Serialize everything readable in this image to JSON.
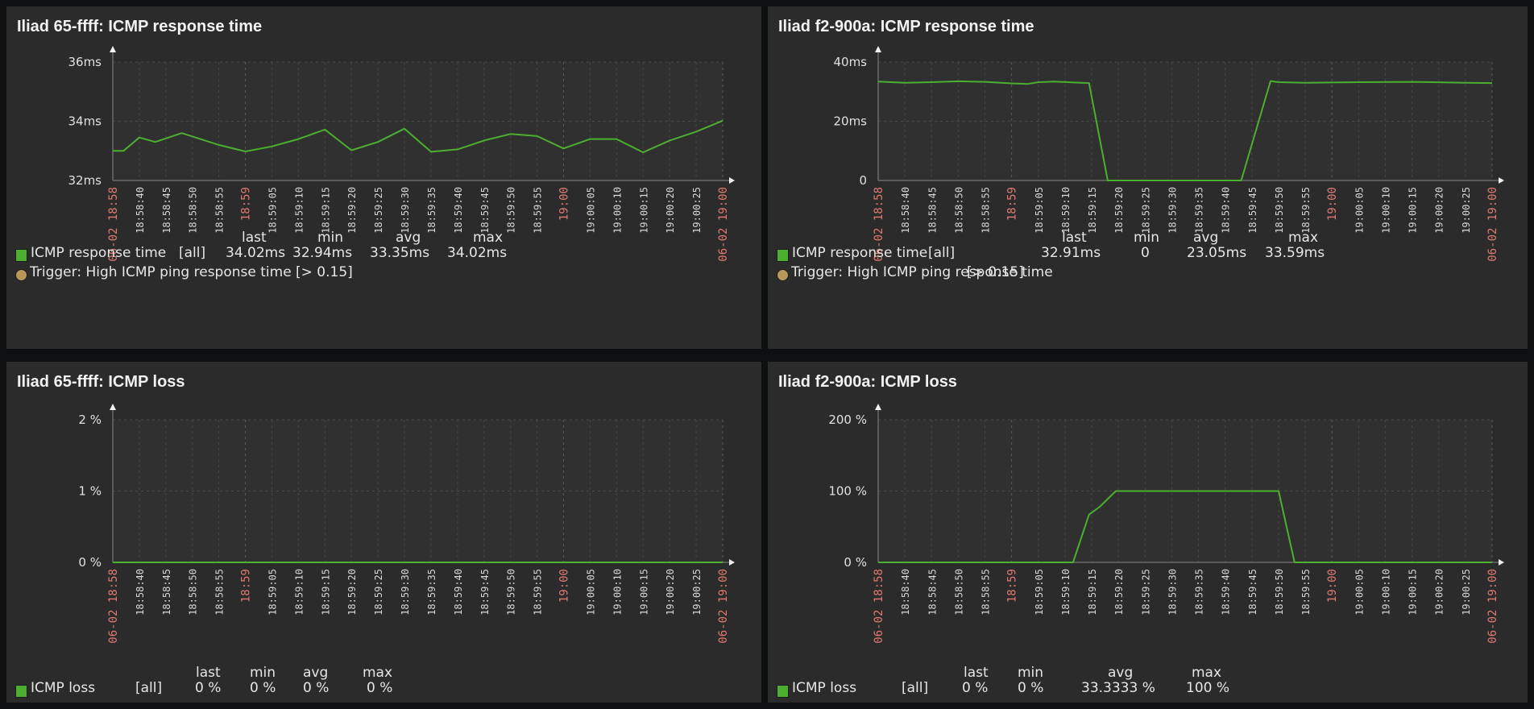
{
  "colors": {
    "series": "#4caf2f",
    "trigger": "#b8985a",
    "major_tick": "#e07a72",
    "panel_bg": "#2b2b2b",
    "plot_bg": "#303030",
    "page_bg": "#0e0f11"
  },
  "time_axis": {
    "start": "06-02 18:58:35",
    "end": "06-02 19:00:30",
    "labels": [
      {
        "t": 0,
        "text": "06-02 18:58",
        "major": true
      },
      {
        "t": 5,
        "text": "18:58:40",
        "major": false
      },
      {
        "t": 10,
        "text": "18:58:45",
        "major": false
      },
      {
        "t": 15,
        "text": "18:58:50",
        "major": false
      },
      {
        "t": 20,
        "text": "18:58:55",
        "major": false
      },
      {
        "t": 25,
        "text": "18:59",
        "major": true
      },
      {
        "t": 30,
        "text": "18:59:05",
        "major": false
      },
      {
        "t": 35,
        "text": "18:59:10",
        "major": false
      },
      {
        "t": 40,
        "text": "18:59:15",
        "major": false
      },
      {
        "t": 45,
        "text": "18:59:20",
        "major": false
      },
      {
        "t": 50,
        "text": "18:59:25",
        "major": false
      },
      {
        "t": 55,
        "text": "18:59:30",
        "major": false
      },
      {
        "t": 60,
        "text": "18:59:35",
        "major": false
      },
      {
        "t": 65,
        "text": "18:59:40",
        "major": false
      },
      {
        "t": 70,
        "text": "18:59:45",
        "major": false
      },
      {
        "t": 75,
        "text": "18:59:50",
        "major": false
      },
      {
        "t": 80,
        "text": "18:59:55",
        "major": false
      },
      {
        "t": 85,
        "text": "19:00",
        "major": true
      },
      {
        "t": 90,
        "text": "19:00:05",
        "major": false
      },
      {
        "t": 95,
        "text": "19:00:10",
        "major": false
      },
      {
        "t": 100,
        "text": "19:00:15",
        "major": false
      },
      {
        "t": 105,
        "text": "19:00:20",
        "major": false
      },
      {
        "t": 110,
        "text": "19:00:25",
        "major": false
      },
      {
        "t": 115,
        "text": "06-02 19:00",
        "major": true
      }
    ]
  },
  "panels": [
    {
      "title": "Iliad 65-ffff: ICMP response time",
      "legend": {
        "headers": {
          "last": "last",
          "min": "min",
          "avg": "avg",
          "max": "max"
        },
        "series": [
          {
            "name": "ICMP response time",
            "scope": "[all]",
            "last": "34.02ms",
            "min": "32.94ms",
            "avg": "33.35ms",
            "max": "34.02ms"
          }
        ],
        "trigger": {
          "name": "Trigger: High ICMP ping response time",
          "condition": "[> 0.15]"
        }
      }
    },
    {
      "title": "Iliad f2-900a: ICMP response time",
      "legend": {
        "headers": {
          "last": "last",
          "min": "min",
          "avg": "avg",
          "max": "max"
        },
        "series": [
          {
            "name": "ICMP response time",
            "scope": "[all]",
            "last": "32.91ms",
            "min": "0",
            "avg": "23.05ms",
            "max": "33.59ms"
          }
        ],
        "trigger": {
          "name": "Trigger: High ICMP ping response time",
          "condition": "[> 0.15]"
        }
      }
    },
    {
      "title": "Iliad 65-ffff: ICMP loss",
      "legend": {
        "headers": {
          "last": "last",
          "min": "min",
          "avg": "avg",
          "max": "max"
        },
        "series": [
          {
            "name": "ICMP loss",
            "scope": "[all]",
            "last": "0 %",
            "min": "0 %",
            "avg": "0 %",
            "max": "0 %"
          }
        ]
      }
    },
    {
      "title": "Iliad f2-900a: ICMP loss",
      "legend": {
        "headers": {
          "last": "last",
          "min": "min",
          "avg": "avg",
          "max": "max"
        },
        "series": [
          {
            "name": "ICMP loss",
            "scope": "[all]",
            "last": "0 %",
            "min": "0 %",
            "avg": "33.3333 %",
            "max": "100 %"
          }
        ]
      }
    }
  ],
  "chart_data": [
    {
      "type": "line",
      "title": "Iliad 65-ffff: ICMP response time",
      "xlabel": "",
      "ylabel": "",
      "ylim": [
        32,
        36
      ],
      "yticks": [
        {
          "v": 32,
          "text": "32ms"
        },
        {
          "v": 34,
          "text": "34ms"
        },
        {
          "v": 36,
          "text": "36ms"
        }
      ],
      "grid": true,
      "series": [
        {
          "name": "ICMP response time",
          "x": [
            0,
            2,
            5,
            8,
            13,
            20,
            25,
            30,
            35,
            40,
            45,
            50,
            55,
            60,
            65,
            70,
            75,
            80,
            85,
            90,
            95,
            100,
            105,
            110,
            115
          ],
          "values": [
            33.0,
            33.0,
            33.45,
            33.3,
            33.6,
            33.2,
            32.98,
            33.15,
            33.4,
            33.72,
            33.02,
            33.3,
            33.75,
            32.97,
            33.05,
            33.35,
            33.57,
            33.5,
            33.08,
            33.4,
            33.4,
            32.95,
            33.35,
            33.65,
            34.02
          ]
        }
      ]
    },
    {
      "type": "line",
      "title": "Iliad f2-900a: ICMP response time",
      "xlabel": "",
      "ylabel": "",
      "ylim": [
        0,
        40
      ],
      "yticks": [
        {
          "v": 0,
          "text": "0"
        },
        {
          "v": 20,
          "text": "20ms"
        },
        {
          "v": 40,
          "text": "40ms"
        }
      ],
      "grid": true,
      "series": [
        {
          "name": "ICMP response time",
          "x": [
            0,
            5,
            10,
            15,
            20,
            25,
            28,
            30,
            33,
            38,
            39.5,
            43,
            68,
            73.5,
            75,
            80,
            90,
            100,
            110,
            115
          ],
          "values": [
            33.4,
            33.0,
            33.2,
            33.5,
            33.3,
            32.8,
            32.6,
            33.2,
            33.4,
            33.0,
            32.9,
            0,
            0,
            33.59,
            33.2,
            33.0,
            33.2,
            33.3,
            33.0,
            32.91
          ]
        }
      ]
    },
    {
      "type": "line",
      "title": "Iliad 65-ffff: ICMP loss",
      "xlabel": "",
      "ylabel": "",
      "ylim": [
        0,
        2
      ],
      "yticks": [
        {
          "v": 0,
          "text": "0 %"
        },
        {
          "v": 1,
          "text": "1 %"
        },
        {
          "v": 2,
          "text": "2 %"
        }
      ],
      "grid": true,
      "series": [
        {
          "name": "ICMP loss",
          "x": [
            0,
            115
          ],
          "values": [
            0,
            0
          ]
        }
      ]
    },
    {
      "type": "line",
      "title": "Iliad f2-900a: ICMP loss",
      "xlabel": "",
      "ylabel": "",
      "ylim": [
        0,
        200
      ],
      "yticks": [
        {
          "v": 0,
          "text": "0 %"
        },
        {
          "v": 100,
          "text": "100 %"
        },
        {
          "v": 200,
          "text": "200 %"
        }
      ],
      "grid": true,
      "series": [
        {
          "name": "ICMP loss",
          "x": [
            0,
            36.5,
            39.5,
            41.5,
            44.5,
            75,
            78,
            115
          ],
          "values": [
            0,
            0,
            67,
            78,
            100,
            100,
            0,
            0
          ]
        }
      ]
    }
  ]
}
